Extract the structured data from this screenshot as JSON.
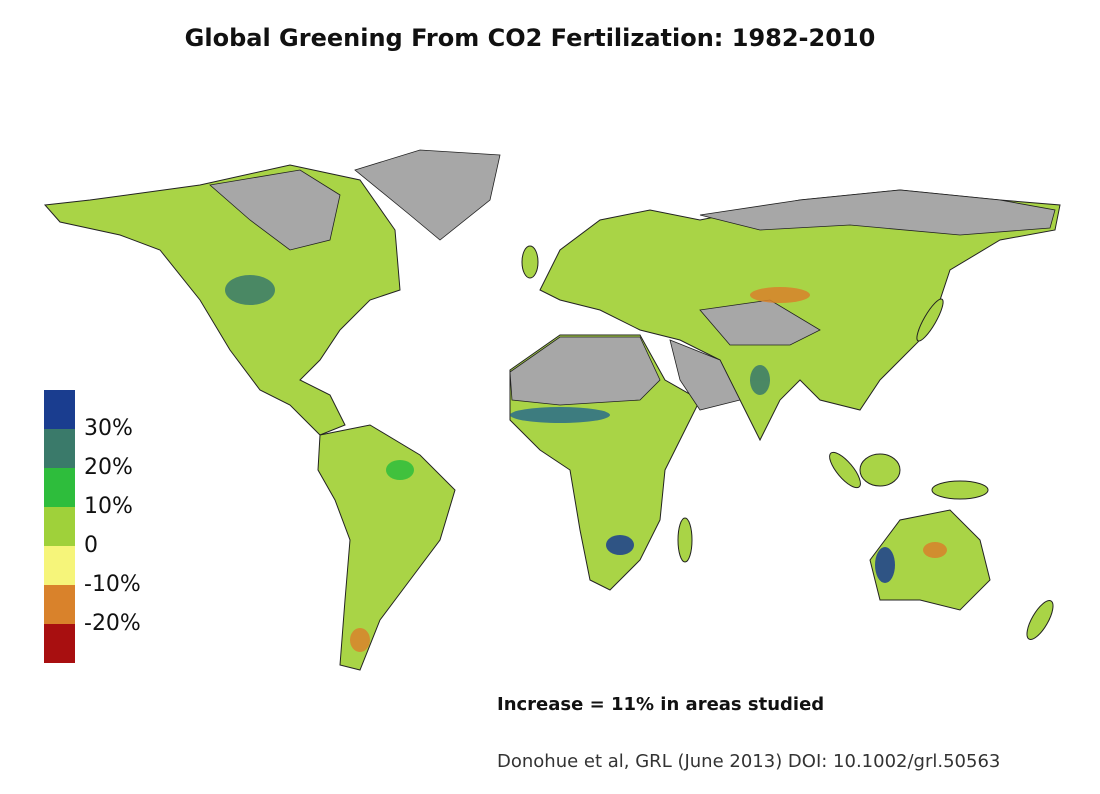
{
  "title": "Global Greening From CO2 Fertilization: 1982-2010",
  "legend": {
    "colors": [
      "#1a3d8f",
      "#3a7a6a",
      "#2ebd3c",
      "#9fd13a",
      "#f6f57a",
      "#d9822b",
      "#a80f10"
    ],
    "labels": [
      "30%",
      "20%",
      "10%",
      "0",
      "-10%",
      "-20%"
    ]
  },
  "annotation": "Increase = 11% in areas studied",
  "citation": "Donohue et al, GRL (June 2013) DOI: 10.1002/grl.50563"
}
